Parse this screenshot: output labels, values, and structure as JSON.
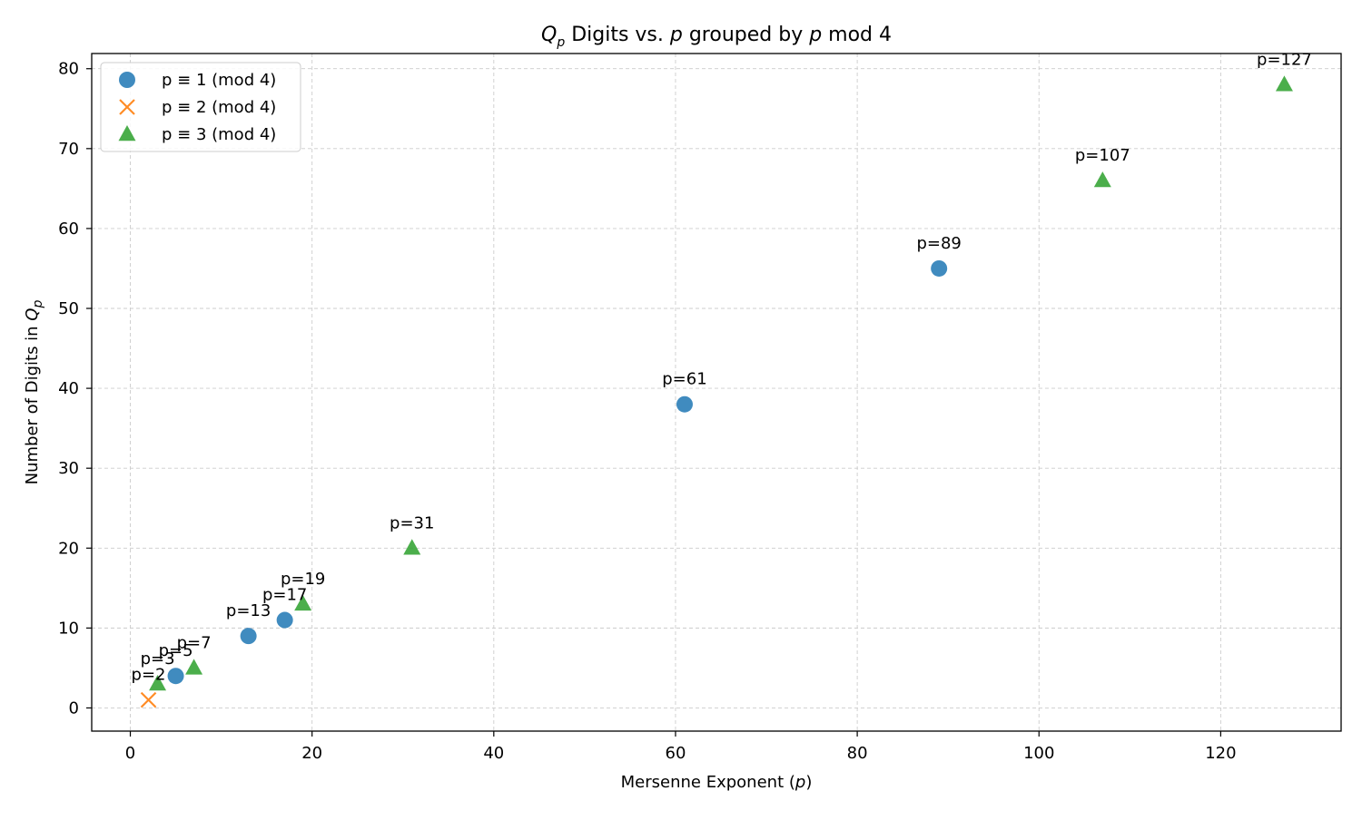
{
  "chart_data": {
    "type": "scatter",
    "title_main": "Q",
    "title_sub": "p",
    "title_rest_1": " Digits vs. ",
    "title_p": "p",
    "title_rest_2": " grouped by ",
    "title_p2": "p",
    "title_rest_3": " mod 4",
    "xlabel_text": "Mersenne Exponent (",
    "xlabel_var": "p",
    "xlabel_close": ")",
    "ylabel_text": "Number of Digits in ",
    "ylabel_var": "Q",
    "ylabel_sub": "p",
    "xlim": [
      -4.25,
      133.25
    ],
    "ylim": [
      -2.9,
      81.9
    ],
    "xticks": [
      0,
      20,
      40,
      60,
      80,
      100,
      120
    ],
    "yticks": [
      0,
      10,
      20,
      30,
      40,
      50,
      60,
      70,
      80
    ],
    "grid": true,
    "legend_position": "upper left",
    "series": [
      {
        "name": "p ≡ 1 (mod 4)",
        "marker": "circle",
        "color": "#1f77b4",
        "points": [
          {
            "x": 5,
            "y": 4,
            "label": "p=5"
          },
          {
            "x": 13,
            "y": 9,
            "label": "p=13"
          },
          {
            "x": 17,
            "y": 11,
            "label": "p=17"
          },
          {
            "x": 61,
            "y": 38,
            "label": "p=61"
          },
          {
            "x": 89,
            "y": 55,
            "label": "p=89"
          }
        ]
      },
      {
        "name": "p ≡ 2 (mod 4)",
        "marker": "x",
        "color": "#ff7f0e",
        "points": [
          {
            "x": 2,
            "y": 1,
            "label": "p=2"
          }
        ]
      },
      {
        "name": "p ≡ 3 (mod 4)",
        "marker": "triangle",
        "color": "#2ca02c",
        "points": [
          {
            "x": 3,
            "y": 3,
            "label": "p=3"
          },
          {
            "x": 7,
            "y": 5,
            "label": "p=7"
          },
          {
            "x": 19,
            "y": 13,
            "label": "p=19"
          },
          {
            "x": 31,
            "y": 20,
            "label": "p=31"
          },
          {
            "x": 107,
            "y": 66,
            "label": "p=107"
          },
          {
            "x": 127,
            "y": 78,
            "label": "p=127"
          }
        ]
      }
    ]
  }
}
